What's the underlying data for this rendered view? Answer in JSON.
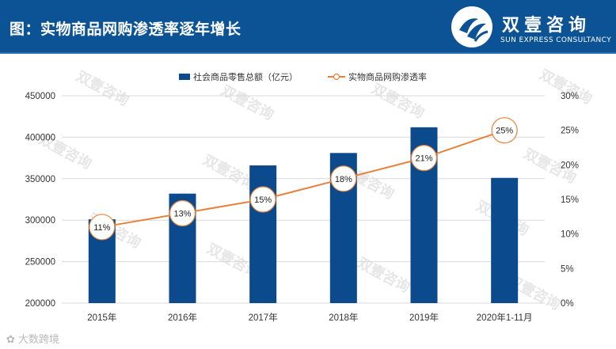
{
  "header": {
    "title": "图：实物商品网购渗透率逐年增长",
    "logo_cn": "双壹咨询",
    "logo_en": "SUN EXPRESS CONSULTANCY"
  },
  "watermark": {
    "text": "双壹咨询",
    "source": "大数跨境"
  },
  "colors": {
    "header_bg": "#0b5394",
    "bar": "#0b4a8c",
    "line": "#e8823a",
    "grid": "#d9d9d9",
    "axis_text": "#333333"
  },
  "chart_data": {
    "type": "bar+line",
    "categories": [
      "2015年",
      "2016年",
      "2017年",
      "2018年",
      "2019年",
      "2020年1-11月"
    ],
    "series": [
      {
        "name": "社会商品零售总额（亿元）",
        "type": "bar",
        "axis": "left",
        "values": [
          301000,
          332000,
          366000,
          381000,
          412000,
          351000
        ]
      },
      {
        "name": "实物商品网购渗透率",
        "type": "line",
        "axis": "right",
        "values": [
          11,
          13,
          15,
          18,
          21,
          25
        ],
        "labels": [
          "11%",
          "13%",
          "15%",
          "18%",
          "21%",
          "25%"
        ]
      }
    ],
    "left_axis": {
      "min": 200000,
      "max": 450000,
      "step": 50000,
      "ticks": [
        "200000",
        "250000",
        "300000",
        "350000",
        "400000",
        "450000"
      ]
    },
    "right_axis": {
      "min": 0,
      "max": 30,
      "step": 5,
      "ticks": [
        "0%",
        "5%",
        "10%",
        "15%",
        "20%",
        "25%",
        "30%"
      ]
    },
    "legend_position": "top-center",
    "grid": true
  }
}
